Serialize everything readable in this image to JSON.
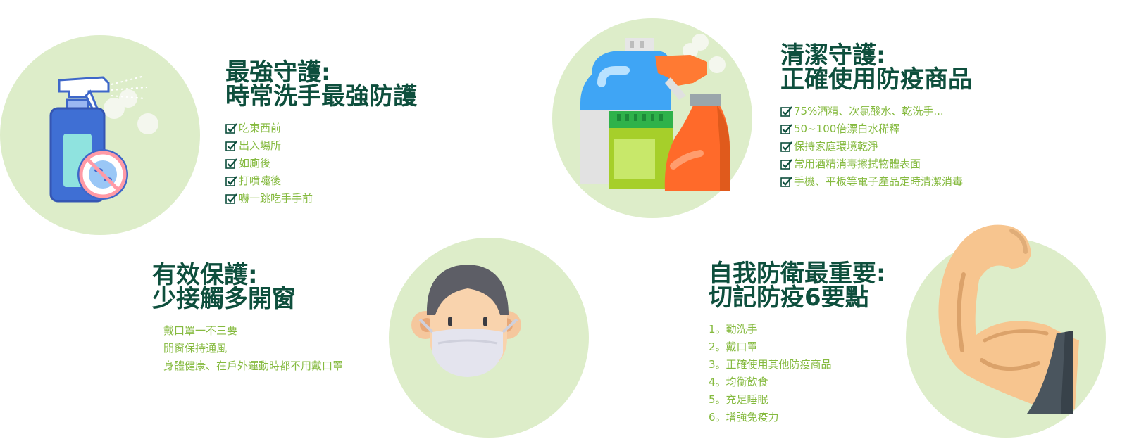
{
  "colors": {
    "circle_bg": "#ddedc9",
    "title": "#0e4f3d",
    "list_text": "#85ba3f",
    "check": "#0e4f3d"
  },
  "sections": {
    "handwash": {
      "icon": "spray-bottle-icon",
      "title_line1": "最強守護:",
      "title_line2": "時常洗手最強防護",
      "items": [
        "吃東西前",
        "出入場所",
        "如廁後",
        "打噴嚏後",
        "嚇一跳吃手手前"
      ]
    },
    "cleaning": {
      "icon": "cleaning-products-icon",
      "title_line1": "清潔守護:",
      "title_line2": "正確使用防疫商品",
      "items": [
        "75%酒精、次氯酸水、乾洗手...",
        "50~100倍漂白水稀釋",
        "保持家庭環境乾淨",
        "常用酒精消毒擦拭物體表面",
        "手機、平板等電子產品定時清潔消毒"
      ]
    },
    "mask": {
      "icon": "face-mask-icon",
      "title_line1": "有效保護:",
      "title_line2": "少接觸多開窗",
      "items": [
        "戴口罩一不三要",
        "開窗保持通風",
        "身體健康、在戶外運動時都不用戴口罩"
      ]
    },
    "selfdefense": {
      "icon": "flexed-arm-icon",
      "title_line1": "自我防衛最重要:",
      "title_line2": "切記防疫6要點",
      "items": [
        "1。勤洗手",
        "2。戴口罩",
        "3。正確使用其他防疫商品",
        "4。均衡飲食",
        "5。充足睡眠",
        "6。增強免疫力"
      ]
    }
  }
}
